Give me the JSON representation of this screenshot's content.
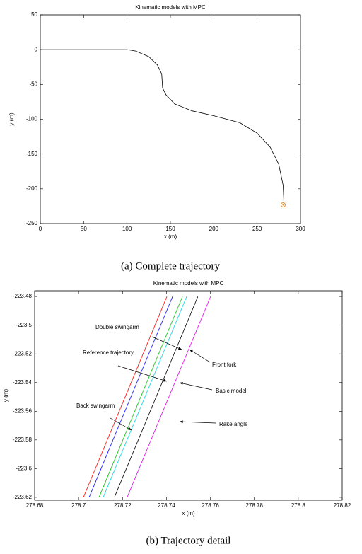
{
  "chart_data": [
    {
      "type": "line",
      "title": "Kinematic models with MPC",
      "xlabel": "x (m)",
      "ylabel": "y (m)",
      "caption": "(a)  Complete trajectory",
      "xlim": [
        0,
        300
      ],
      "ylim": [
        -250,
        50
      ],
      "xticks": [
        0,
        50,
        100,
        150,
        200,
        250,
        300
      ],
      "yticks": [
        -250,
        -200,
        -150,
        -100,
        -50,
        0,
        50
      ],
      "series": [
        {
          "color": "#000000",
          "x": [
            0,
            100,
            110,
            125,
            135,
            140,
            141,
            145,
            155,
            175,
            200,
            230,
            250,
            265,
            275,
            280,
            281
          ],
          "values": [
            0,
            0,
            -2,
            -10,
            -22,
            -35,
            -55,
            -65,
            -78,
            -88,
            -95,
            -105,
            -120,
            -140,
            -165,
            -195,
            -223
          ]
        }
      ],
      "marker": {
        "x": 280,
        "y": -223,
        "color": "#e08a20"
      }
    },
    {
      "type": "line",
      "title": "Kinematic models with MPC",
      "xlabel": "x (m)",
      "ylabel": "y (m)",
      "caption": "(b)  Trajectory detail",
      "xlim": [
        278.68,
        278.82
      ],
      "ylim": [
        -223.622,
        -223.476
      ],
      "xticks": [
        278.68,
        278.7,
        278.72,
        278.74,
        278.76,
        278.78,
        278.8,
        278.82
      ],
      "yticks": [
        -223.62,
        -223.6,
        -223.58,
        -223.56,
        -223.54,
        -223.52,
        -223.5,
        -223.48
      ],
      "series": [
        {
          "name": "Double swingarm",
          "color": "#ff0000",
          "x": [
            278.7022,
            278.7402
          ],
          "values": [
            -223.62,
            -223.48
          ]
        },
        {
          "name": "Reference trajectory",
          "color": "#0000ff",
          "x": [
            278.7048,
            278.7428
          ],
          "values": [
            -223.62,
            -223.48
          ]
        },
        {
          "name": "Back swingarm",
          "color": "#00c000",
          "x": [
            278.7093,
            278.7473
          ],
          "values": [
            -223.62,
            -223.48
          ]
        },
        {
          "name": "Front fork",
          "color": "#00d0e0",
          "x": [
            278.7112,
            278.7492
          ],
          "values": [
            -223.62,
            -223.48
          ]
        },
        {
          "name": "Basic model",
          "color": "#000000",
          "x": [
            278.7163,
            278.7543
          ],
          "values": [
            -223.62,
            -223.48
          ]
        },
        {
          "name": "Rake angle",
          "color": "#e000e0",
          "x": [
            278.7221,
            278.7601
          ],
          "values": [
            -223.62,
            -223.48
          ]
        }
      ]
    }
  ]
}
